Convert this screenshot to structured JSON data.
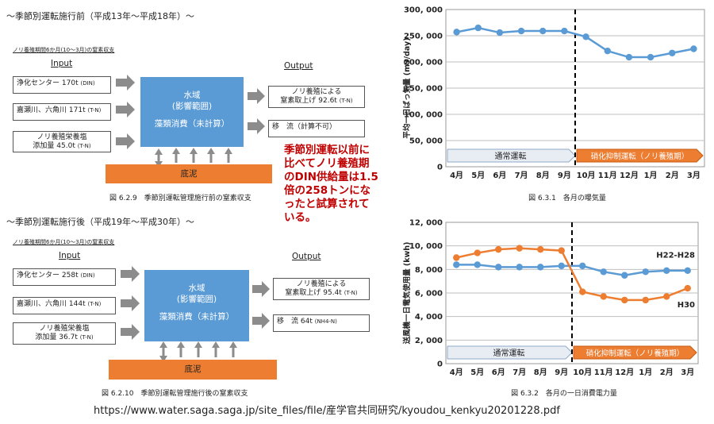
{
  "before": {
    "title": "～季節別運転施行前（平成13年～平成18年）～",
    "subtitle": "ノリ養殖期間6か月(10～3月)の窒素収支",
    "input_label": "Input",
    "output_label": "Output",
    "inputs": [
      {
        "name": "浄化センター",
        "value": "170t",
        "unit": "(DIN)"
      },
      {
        "name": "嘉瀬川、六角川",
        "value": "171t",
        "unit": "(T-N)"
      },
      {
        "name": "ノリ養殖栄養塩",
        "name2": "添加量",
        "value": "45.0t",
        "unit": "(T-N)"
      }
    ],
    "water_line1": "水域",
    "water_line2": "(影響範囲)",
    "water_line3": "藻類消費（未計算）",
    "mud": "底泥",
    "outputs": [
      {
        "line1": "ノリ養殖による",
        "line2": "窒素取上げ 92.6t",
        "unit": "(T-N)"
      },
      {
        "line1": "移　流（計算不可）"
      }
    ],
    "caption": "図 6.2.9　季節別運転管理施行前の窒素収支"
  },
  "after": {
    "title": "～季節別運転施行後（平成19年～平成30年）～",
    "subtitle": "ノリ養殖期間6か月(10～3月)の窒素収支",
    "input_label": "Input",
    "output_label": "Output",
    "inputs": [
      {
        "name": "浄化センター",
        "value": "258t",
        "unit": "(DIN)"
      },
      {
        "name": "嘉瀬川、六角川",
        "value": "144t",
        "unit": "(T-N)"
      },
      {
        "name": "ノリ養殖栄養塩",
        "name2": "添加量",
        "value": "36.7t",
        "unit": "(T-N)"
      }
    ],
    "water_line1": "水域",
    "water_line2": "(影響範囲)",
    "water_line3": "藻類消費（未計算）",
    "mud": "底泥",
    "outputs": [
      {
        "line1": "ノリ養殖による",
        "line2": "窒素取上げ 95.4t",
        "unit": "(T-N)"
      },
      {
        "line1": "移　流 64t",
        "unit": "(NH4-N)"
      }
    ],
    "caption": "図 6.2.10　季節別運転管理施行後の窒素収支"
  },
  "note": {
    "lines": [
      "季節別運転以前に",
      "比べてノリ養殖期",
      "のDIN供給量は1.5",
      "倍の258トンにな",
      "ったと試算されて",
      "いる。"
    ]
  },
  "url": "https://www.water.saga.saga.jp/site_files/file/産学官共同研究/kyoudou_kenkyu20201228.pdf",
  "colors": {
    "blue": "#5b9bd5",
    "orange": "#ed7d31",
    "red": "#c00000",
    "gray_arrow": "#8c8c8c"
  },
  "chart_data": [
    {
      "type": "line",
      "categories": [
        "4月",
        "5月",
        "6月",
        "7月",
        "8月",
        "9月",
        "10月",
        "11月",
        "12月",
        "1月",
        "2月",
        "3月"
      ],
      "series": [
        {
          "values": [
            257000,
            265000,
            256000,
            259000,
            259000,
            259000,
            248000,
            221000,
            209000,
            209000,
            217000,
            225000
          ]
        }
      ],
      "ylabel": "平均一日ばっ気量 (m3/day)",
      "ylim": [
        0,
        300000
      ],
      "yticks": [
        "0",
        "50, 000",
        "100, 000",
        "150, 000",
        "200, 000",
        "250, 000",
        "300, 000"
      ],
      "band_left": "通常運転",
      "band_right": "硝化抑制運転（ノリ養殖期）",
      "caption": "図 6.3.1　各月の曝気量",
      "grid": true
    },
    {
      "type": "line",
      "categories": [
        "4月",
        "5月",
        "6月",
        "7月",
        "8月",
        "9月",
        "10月",
        "11月",
        "12月",
        "1月",
        "2月",
        "3月"
      ],
      "series": [
        {
          "name": "H22-H28",
          "values": [
            8400,
            8400,
            8200,
            8200,
            8200,
            8300,
            8300,
            7800,
            7500,
            7800,
            7900,
            7900
          ]
        },
        {
          "name": "H30",
          "values": [
            9000,
            9400,
            9700,
            9800,
            9700,
            9600,
            6100,
            5700,
            5400,
            5400,
            5700,
            6400
          ]
        }
      ],
      "ylabel": "送風機一日電気使用量 (kwh)",
      "ylim": [
        0,
        12000
      ],
      "yticks": [
        "0",
        "2, 000",
        "4, 000",
        "6, 000",
        "8, 000",
        "10, 000",
        "12, 000"
      ],
      "band_left": "通常運転",
      "band_right": "硝化抑制運転（ノリ養殖期）",
      "caption": "図 6.3.2　各月の一日消費電力量",
      "grid": true
    }
  ]
}
